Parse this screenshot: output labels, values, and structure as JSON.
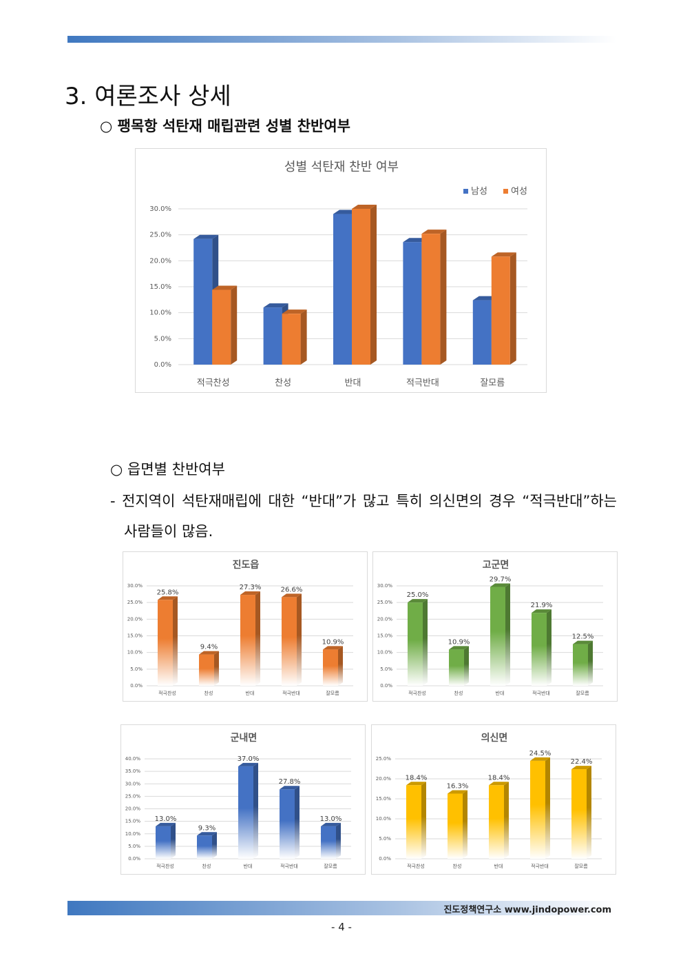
{
  "heading": "3. 여론조사 상세",
  "subheading": "○ 팽목항 석탄재 매립관련 성별 찬반여부",
  "section_heading": "○ 읍면별 찬반여부",
  "paragraph": "- 전지역이 석탄재매립에 대한 “반대”가 많고 특히 의신면의 경우 “적극반대”하는 사람들이 많음.",
  "footer": "진도정책연구소 www.jindopower.com",
  "page_number": "- 4 -",
  "chart_data": [
    {
      "type": "bar",
      "title": "성별 석탄재 찬반 여부",
      "categories": [
        "적극찬성",
        "찬성",
        "반대",
        "적극반대",
        "잘모름"
      ],
      "series": [
        {
          "name": "남성",
          "color": "#4472c4",
          "values": [
            24.2,
            11.0,
            29.0,
            23.6,
            12.4
          ]
        },
        {
          "name": "여성",
          "color": "#ed7d31",
          "values": [
            14.4,
            9.8,
            30.0,
            25.2,
            20.8
          ]
        }
      ],
      "ylim": [
        0,
        30
      ],
      "yticks": [
        {
          "value": 0,
          "label": "0.0%"
        },
        {
          "value": 5,
          "label": "5.0%"
        },
        {
          "value": 10,
          "label": "10.0%"
        },
        {
          "value": 15,
          "label": "15.0%"
        },
        {
          "value": 20,
          "label": "20.0%"
        },
        {
          "value": 25,
          "label": "25.0%"
        },
        {
          "value": 30,
          "label": "30.0%"
        }
      ],
      "grid": true,
      "legend": "top-right",
      "gradient": false
    },
    {
      "type": "bar",
      "title": "진도읍",
      "categories": [
        "적극찬성",
        "찬성",
        "반대",
        "적극반대",
        "잘모름"
      ],
      "series": [
        {
          "color": "#ed7d31",
          "values": [
            25.8,
            9.4,
            27.3,
            26.6,
            10.9
          ],
          "value_labels": [
            "25.8%",
            "9.4%",
            "27.3%",
            "26.6%",
            "10.9%"
          ]
        }
      ],
      "ylim": [
        0,
        30
      ],
      "yticks": [
        {
          "value": 0,
          "label": "0.0%"
        },
        {
          "value": 5,
          "label": "5.0%"
        },
        {
          "value": 10,
          "label": "10.0%"
        },
        {
          "value": 15,
          "label": "15.0%"
        },
        {
          "value": 20,
          "label": "20.0%"
        },
        {
          "value": 25,
          "label": "25.0%"
        },
        {
          "value": 30,
          "label": "30.0%"
        }
      ],
      "grid": true,
      "gradient": true
    },
    {
      "type": "bar",
      "title": "고군면",
      "categories": [
        "적극찬성",
        "찬성",
        "반대",
        "적극반대",
        "잘모름"
      ],
      "series": [
        {
          "color": "#70ad47",
          "values": [
            25.0,
            10.9,
            29.7,
            21.9,
            12.5
          ],
          "value_labels": [
            "25.0%",
            "10.9%",
            "29.7%",
            "21.9%",
            "12.5%"
          ]
        }
      ],
      "ylim": [
        0,
        30
      ],
      "yticks": [
        {
          "value": 0,
          "label": "0.0%"
        },
        {
          "value": 5,
          "label": "5.0%"
        },
        {
          "value": 10,
          "label": "10.0%"
        },
        {
          "value": 15,
          "label": "15.0%"
        },
        {
          "value": 20,
          "label": "20.0%"
        },
        {
          "value": 25,
          "label": "25.0%"
        },
        {
          "value": 30,
          "label": "30.0%"
        }
      ],
      "grid": true,
      "gradient": true
    },
    {
      "type": "bar",
      "title": "군내면",
      "categories": [
        "적극찬성",
        "찬성",
        "반대",
        "적극반대",
        "잘모름"
      ],
      "series": [
        {
          "color": "#4472c4",
          "values": [
            13.0,
            9.3,
            37.0,
            27.8,
            13.0
          ],
          "value_labels": [
            "13.0%",
            "9.3%",
            "37.0%",
            "27.8%",
            "13.0%"
          ]
        }
      ],
      "ylim": [
        0,
        40
      ],
      "yticks": [
        {
          "value": 0,
          "label": "0.0%"
        },
        {
          "value": 5,
          "label": "5.0%"
        },
        {
          "value": 10,
          "label": "10.0%"
        },
        {
          "value": 15,
          "label": "15.0%"
        },
        {
          "value": 20,
          "label": "20.0%"
        },
        {
          "value": 25,
          "label": "25.0%"
        },
        {
          "value": 30,
          "label": "30.0%"
        },
        {
          "value": 35,
          "label": "35.0%"
        },
        {
          "value": 40,
          "label": "40.0%"
        }
      ],
      "grid": true,
      "gradient": true
    },
    {
      "type": "bar",
      "title": "의신면",
      "categories": [
        "적극찬성",
        "찬성",
        "반대",
        "적극반대",
        "잘모름"
      ],
      "series": [
        {
          "color": "#ffc000",
          "values": [
            18.4,
            16.3,
            18.4,
            24.5,
            22.4
          ],
          "value_labels": [
            "18.4%",
            "16.3%",
            "18.4%",
            "24.5%",
            "22.4%"
          ]
        }
      ],
      "ylim": [
        0,
        25
      ],
      "yticks": [
        {
          "value": 0,
          "label": "0.0%"
        },
        {
          "value": 5,
          "label": "5.0%"
        },
        {
          "value": 10,
          "label": "10.0%"
        },
        {
          "value": 15,
          "label": "15.0%"
        },
        {
          "value": 20,
          "label": "20.0%"
        },
        {
          "value": 25,
          "label": "25.0%"
        }
      ],
      "grid": true,
      "gradient": true
    }
  ]
}
